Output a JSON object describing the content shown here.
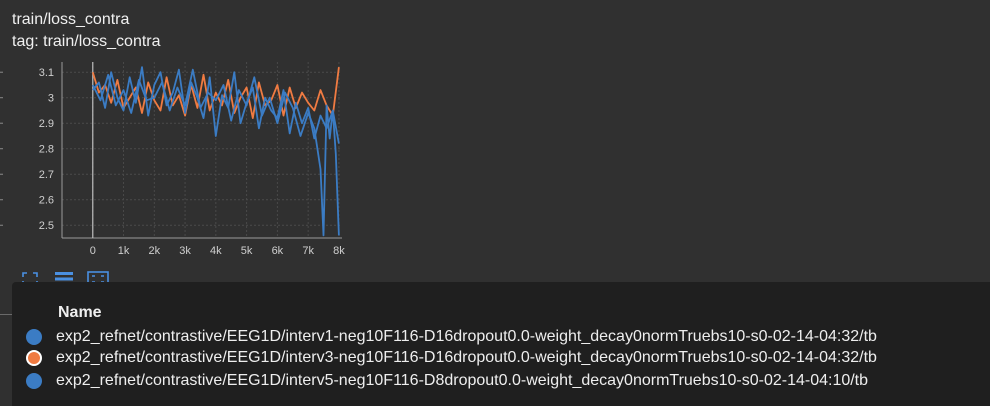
{
  "card": {
    "title": "train/loss_contra",
    "subtitle": "tag: train/loss_contra"
  },
  "toolbar": {
    "buttons": [
      "expand-icon",
      "data-table-icon",
      "fit-domain-icon"
    ]
  },
  "legend": {
    "header": "Name",
    "runs": [
      {
        "name": "exp2_refnet/contrastive/EEG1D/interv1-neg10F116-D16dropout0.0-weight_decay0normTruebs10-s0-02-14-04:32/tb",
        "color": "#3b7cc4",
        "outline": false
      },
      {
        "name": "exp2_refnet/contrastive/EEG1D/interv3-neg10F116-D16dropout0.0-weight_decay0normTruebs10-s0-02-14-04:32/tb",
        "color": "#f07b42",
        "outline": true
      },
      {
        "name": "exp2_refnet/contrastive/EEG1D/interv5-neg10F116-D8dropout0.0-weight_decay0normTruebs10-s0-02-14-04:10/tb",
        "color": "#3b7cc4",
        "outline": false
      }
    ]
  },
  "chart_data": {
    "type": "line",
    "title": "train/loss_contra",
    "xlim": [
      -1000,
      8100
    ],
    "ylim": [
      2.45,
      3.14
    ],
    "x_ticks": [
      0,
      1000,
      2000,
      3000,
      4000,
      5000,
      6000,
      7000,
      8000
    ],
    "x_tick_labels": [
      "0",
      "1k",
      "2k",
      "3k",
      "4k",
      "5k",
      "6k",
      "7k",
      "8k"
    ],
    "y_ticks": [
      2.5,
      2.6,
      2.7,
      2.8,
      2.9,
      3.0,
      3.1
    ],
    "y_tick_labels": [
      "2.5",
      "2.6",
      "2.7",
      "2.8",
      "2.9",
      "3",
      "3.1"
    ],
    "grid": true,
    "series": [
      {
        "color": "#f07b42",
        "x": [
          0,
          200,
          400,
          600,
          800,
          1000,
          1200,
          1400,
          1600,
          1800,
          2000,
          2200,
          2400,
          2600,
          2800,
          3000,
          3200,
          3400,
          3600,
          3800,
          4000,
          4200,
          4400,
          4600,
          4800,
          5000,
          5200,
          5400,
          5600,
          5800,
          6000,
          6200,
          6400,
          6600,
          6800,
          7000,
          7200,
          7400,
          7600,
          7800,
          8000
        ],
        "y": [
          3.1,
          3.02,
          3.05,
          2.98,
          3.07,
          2.96,
          3.0,
          3.04,
          2.94,
          3.06,
          2.99,
          2.95,
          3.08,
          2.97,
          3.01,
          2.93,
          3.05,
          2.96,
          3.09,
          2.95,
          3.02,
          2.97,
          3.07,
          2.94,
          3.0,
          3.04,
          2.92,
          3.06,
          2.97,
          2.99,
          3.05,
          2.93,
          3.04,
          2.96,
          3.02,
          2.98,
          2.95,
          3.03,
          2.97,
          2.93,
          3.12
        ]
      },
      {
        "color": "#3b7cc4",
        "x": [
          0,
          200,
          400,
          600,
          800,
          1000,
          1200,
          1400,
          1600,
          1800,
          2000,
          2200,
          2400,
          2600,
          2800,
          3000,
          3200,
          3400,
          3600,
          3800,
          4000,
          4200,
          4400,
          4600,
          4800,
          5000,
          5200,
          5400,
          5600,
          5800,
          6000,
          6200,
          6400,
          6600,
          6800,
          7000,
          7200,
          7400,
          7600,
          7800,
          8000
        ],
        "y": [
          3.03,
          3.06,
          2.96,
          3.1,
          3.0,
          2.95,
          3.08,
          2.98,
          3.12,
          2.93,
          3.05,
          3.1,
          2.97,
          3.02,
          3.11,
          2.94,
          3.06,
          3.0,
          2.92,
          3.08,
          2.85,
          3.01,
          2.96,
          3.1,
          2.9,
          2.98,
          3.04,
          2.88,
          3.0,
          2.95,
          2.92,
          3.03,
          2.86,
          2.98,
          2.9,
          2.96,
          2.84,
          2.93,
          2.88,
          2.95,
          2.82
        ]
      },
      {
        "color": "#3b7cc4",
        "x": [
          0,
          250,
          500,
          750,
          1000,
          1250,
          1500,
          1750,
          2000,
          2250,
          2500,
          2750,
          3000,
          3250,
          3500,
          3750,
          4000,
          4250,
          4500,
          4750,
          5000,
          5250,
          5500,
          5750,
          6000,
          6250,
          6500,
          6750,
          7000,
          7200,
          7400,
          7500,
          7600,
          7700,
          7800,
          7900,
          8000
        ],
        "y": [
          3.05,
          2.99,
          3.09,
          2.97,
          3.03,
          2.94,
          3.07,
          2.99,
          3.0,
          3.06,
          2.95,
          3.04,
          2.97,
          3.11,
          2.96,
          3.02,
          2.99,
          3.05,
          2.91,
          3.03,
          2.97,
          3.08,
          2.93,
          3.0,
          2.9,
          3.02,
          2.96,
          2.85,
          2.94,
          2.88,
          2.72,
          2.46,
          2.97,
          2.84,
          2.95,
          2.78,
          2.46
        ]
      }
    ]
  }
}
